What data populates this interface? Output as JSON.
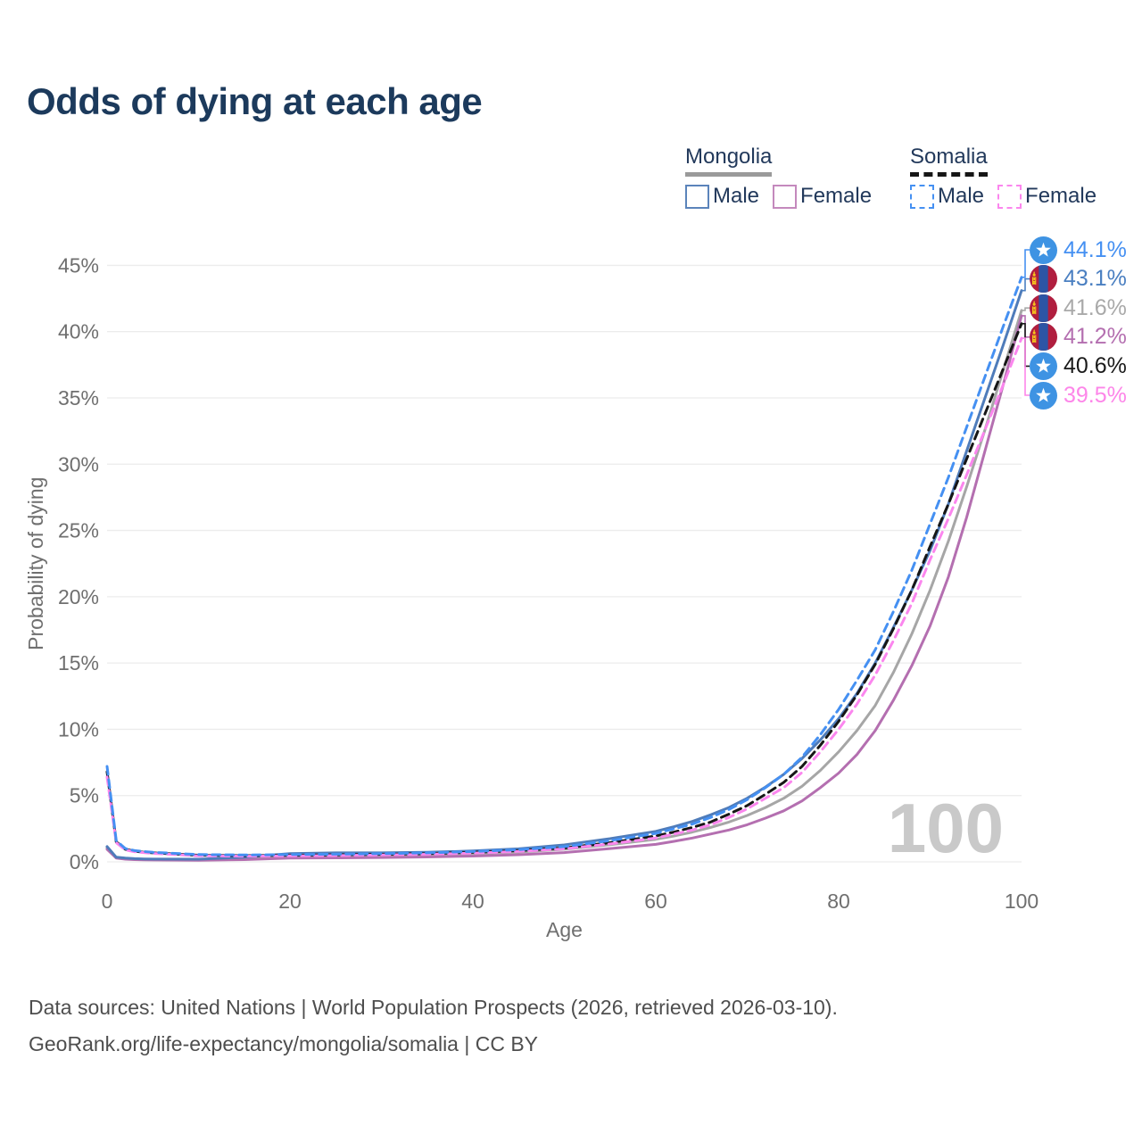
{
  "title": "Odds of dying at each age",
  "legend": {
    "groups": [
      {
        "label": "Mongolia",
        "line_style": "solid",
        "underline_color": "#9a9a9a",
        "items": [
          {
            "label": "Male",
            "color": "#4f7cba"
          },
          {
            "label": "Female",
            "color": "#bd7cb8"
          }
        ]
      },
      {
        "label": "Somalia",
        "line_style": "dashed",
        "underline_color": "#161616",
        "items": [
          {
            "label": "Male",
            "color": "#4590f2"
          },
          {
            "label": "Female",
            "color": "#fb86ee"
          }
        ]
      }
    ]
  },
  "watermark": "100",
  "end_labels": [
    {
      "label": "44.1%",
      "value": 44.1,
      "flag": "somalia",
      "series": "Somalia Male",
      "color": "#4590f2"
    },
    {
      "label": "43.1%",
      "value": 43.1,
      "flag": "mongolia",
      "series": "Mongolia Male",
      "color": "#4a7fc1"
    },
    {
      "label": "41.6%",
      "value": 41.6,
      "flag": "mongolia",
      "series": "Mongolia Both",
      "color": "#a9a9a9"
    },
    {
      "label": "41.2%",
      "value": 41.2,
      "flag": "mongolia",
      "series": "Mongolia Female",
      "color": "#b46fb0"
    },
    {
      "label": "40.6%",
      "value": 40.6,
      "flag": "somalia",
      "series": "Somalia Both",
      "color": "#1a1a1a"
    },
    {
      "label": "39.5%",
      "value": 39.5,
      "flag": "somalia",
      "series": "Somalia Female",
      "color": "#fd86e9"
    }
  ],
  "flag_colors": {
    "somalia_blue": "#3e93e3",
    "somalia_star": "#ffffff",
    "mongolia_red": "#b01e3f",
    "mongolia_blue": "#2d55a5",
    "mongolia_yellow": "#f5c51d"
  },
  "footer": {
    "line1": "Data sources: United Nations | World Population Prospects (2026, retrieved 2026-03-10).",
    "line2": "GeoRank.org/life-expectancy/mongolia/somalia | CC BY"
  },
  "chart_data": {
    "type": "line",
    "title": "Odds of dying at each age",
    "xlabel": "Age",
    "ylabel": "Probability of dying",
    "xlim": [
      0,
      100
    ],
    "ylim": [
      0,
      47
    ],
    "grid": "horizontal",
    "legend_position": "top-right",
    "x_ticks": [
      {
        "label": "0",
        "value": 0
      },
      {
        "label": "20",
        "value": 20
      },
      {
        "label": "40",
        "value": 40
      },
      {
        "label": "60",
        "value": 60
      },
      {
        "label": "80",
        "value": 80
      },
      {
        "label": "100",
        "value": 100
      }
    ],
    "y_ticks": [
      {
        "label": "0%",
        "value": 0
      },
      {
        "label": "5%",
        "value": 5
      },
      {
        "label": "10%",
        "value": 10
      },
      {
        "label": "15%",
        "value": 15
      },
      {
        "label": "20%",
        "value": 20
      },
      {
        "label": "25%",
        "value": 25
      },
      {
        "label": "30%",
        "value": 30
      },
      {
        "label": "35%",
        "value": 35
      },
      {
        "label": "40%",
        "value": 40
      },
      {
        "label": "45%",
        "value": 45
      }
    ],
    "ages": [
      0,
      1,
      2,
      3,
      4,
      5,
      10,
      15,
      20,
      25,
      30,
      35,
      40,
      45,
      50,
      55,
      60,
      62,
      64,
      66,
      68,
      70,
      72,
      74,
      76,
      78,
      80,
      82,
      84,
      86,
      88,
      90,
      92,
      94,
      96,
      98,
      100
    ],
    "series": [
      {
        "name": "Mongolia Both",
        "country": "Mongolia",
        "sex": "both",
        "color": "#a6a6a6",
        "dash": false,
        "values": [
          1.05,
          0.3,
          0.24,
          0.2,
          0.18,
          0.17,
          0.15,
          0.25,
          0.45,
          0.48,
          0.5,
          0.54,
          0.62,
          0.74,
          0.95,
          1.3,
          1.7,
          1.95,
          2.25,
          2.6,
          3.0,
          3.5,
          4.1,
          4.8,
          5.7,
          6.9,
          8.3,
          9.9,
          11.8,
          14.3,
          17.2,
          20.5,
          24.2,
          28.3,
          32.6,
          37.1,
          41.6
        ]
      },
      {
        "name": "Mongolia Female",
        "country": "Mongolia",
        "sex": "female",
        "color": "#b46fb0",
        "dash": false,
        "values": [
          0.95,
          0.28,
          0.2,
          0.17,
          0.15,
          0.14,
          0.12,
          0.17,
          0.28,
          0.3,
          0.33,
          0.37,
          0.44,
          0.54,
          0.7,
          1.0,
          1.32,
          1.55,
          1.8,
          2.1,
          2.4,
          2.8,
          3.3,
          3.85,
          4.6,
          5.6,
          6.7,
          8.1,
          9.9,
          12.2,
          14.8,
          17.8,
          21.5,
          26.0,
          31.0,
          36.0,
          41.2
        ]
      },
      {
        "name": "Mongolia Male",
        "country": "Mongolia",
        "sex": "male",
        "color": "#4f7cba",
        "dash": false,
        "values": [
          1.15,
          0.35,
          0.28,
          0.24,
          0.22,
          0.21,
          0.2,
          0.35,
          0.62,
          0.68,
          0.68,
          0.72,
          0.82,
          0.98,
          1.28,
          1.75,
          2.3,
          2.65,
          3.05,
          3.55,
          4.1,
          4.8,
          5.65,
          6.6,
          7.8,
          9.2,
          10.8,
          12.7,
          15.0,
          17.7,
          20.5,
          23.5,
          27.0,
          31.0,
          35.0,
          39.0,
          43.1
        ]
      },
      {
        "name": "Somalia Both",
        "country": "Somalia",
        "sex": "both",
        "color": "#161616",
        "dash": true,
        "values": [
          6.8,
          1.5,
          0.95,
          0.8,
          0.73,
          0.68,
          0.5,
          0.47,
          0.5,
          0.53,
          0.57,
          0.62,
          0.72,
          0.85,
          1.05,
          1.45,
          1.95,
          2.25,
          2.6,
          3.0,
          3.6,
          4.25,
          5.1,
          6.0,
          7.2,
          8.8,
          10.6,
          12.6,
          14.9,
          17.6,
          20.5,
          23.8,
          27.0,
          30.4,
          33.8,
          37.2,
          40.6
        ]
      },
      {
        "name": "Somalia Female",
        "country": "Somalia",
        "sex": "female",
        "color": "#fb86ee",
        "dash": true,
        "values": [
          6.4,
          1.45,
          0.9,
          0.76,
          0.7,
          0.64,
          0.46,
          0.43,
          0.45,
          0.48,
          0.52,
          0.57,
          0.66,
          0.79,
          0.98,
          1.35,
          1.8,
          2.1,
          2.4,
          2.8,
          3.35,
          4.0,
          4.8,
          5.6,
          6.75,
          8.3,
          10.0,
          11.9,
          14.1,
          16.7,
          19.5,
          22.8,
          25.9,
          29.2,
          32.6,
          36.0,
          39.5
        ]
      },
      {
        "name": "Somalia Male",
        "country": "Somalia",
        "sex": "male",
        "color": "#4590f2",
        "dash": true,
        "values": [
          7.2,
          1.6,
          1.0,
          0.85,
          0.78,
          0.72,
          0.55,
          0.52,
          0.55,
          0.58,
          0.62,
          0.68,
          0.78,
          0.92,
          1.15,
          1.6,
          2.15,
          2.5,
          2.85,
          3.35,
          3.95,
          4.7,
          5.6,
          6.6,
          7.9,
          9.6,
          11.5,
          13.7,
          16.0,
          18.9,
          22.0,
          25.5,
          29.0,
          32.8,
          36.6,
          40.4,
          44.1
        ]
      }
    ]
  }
}
